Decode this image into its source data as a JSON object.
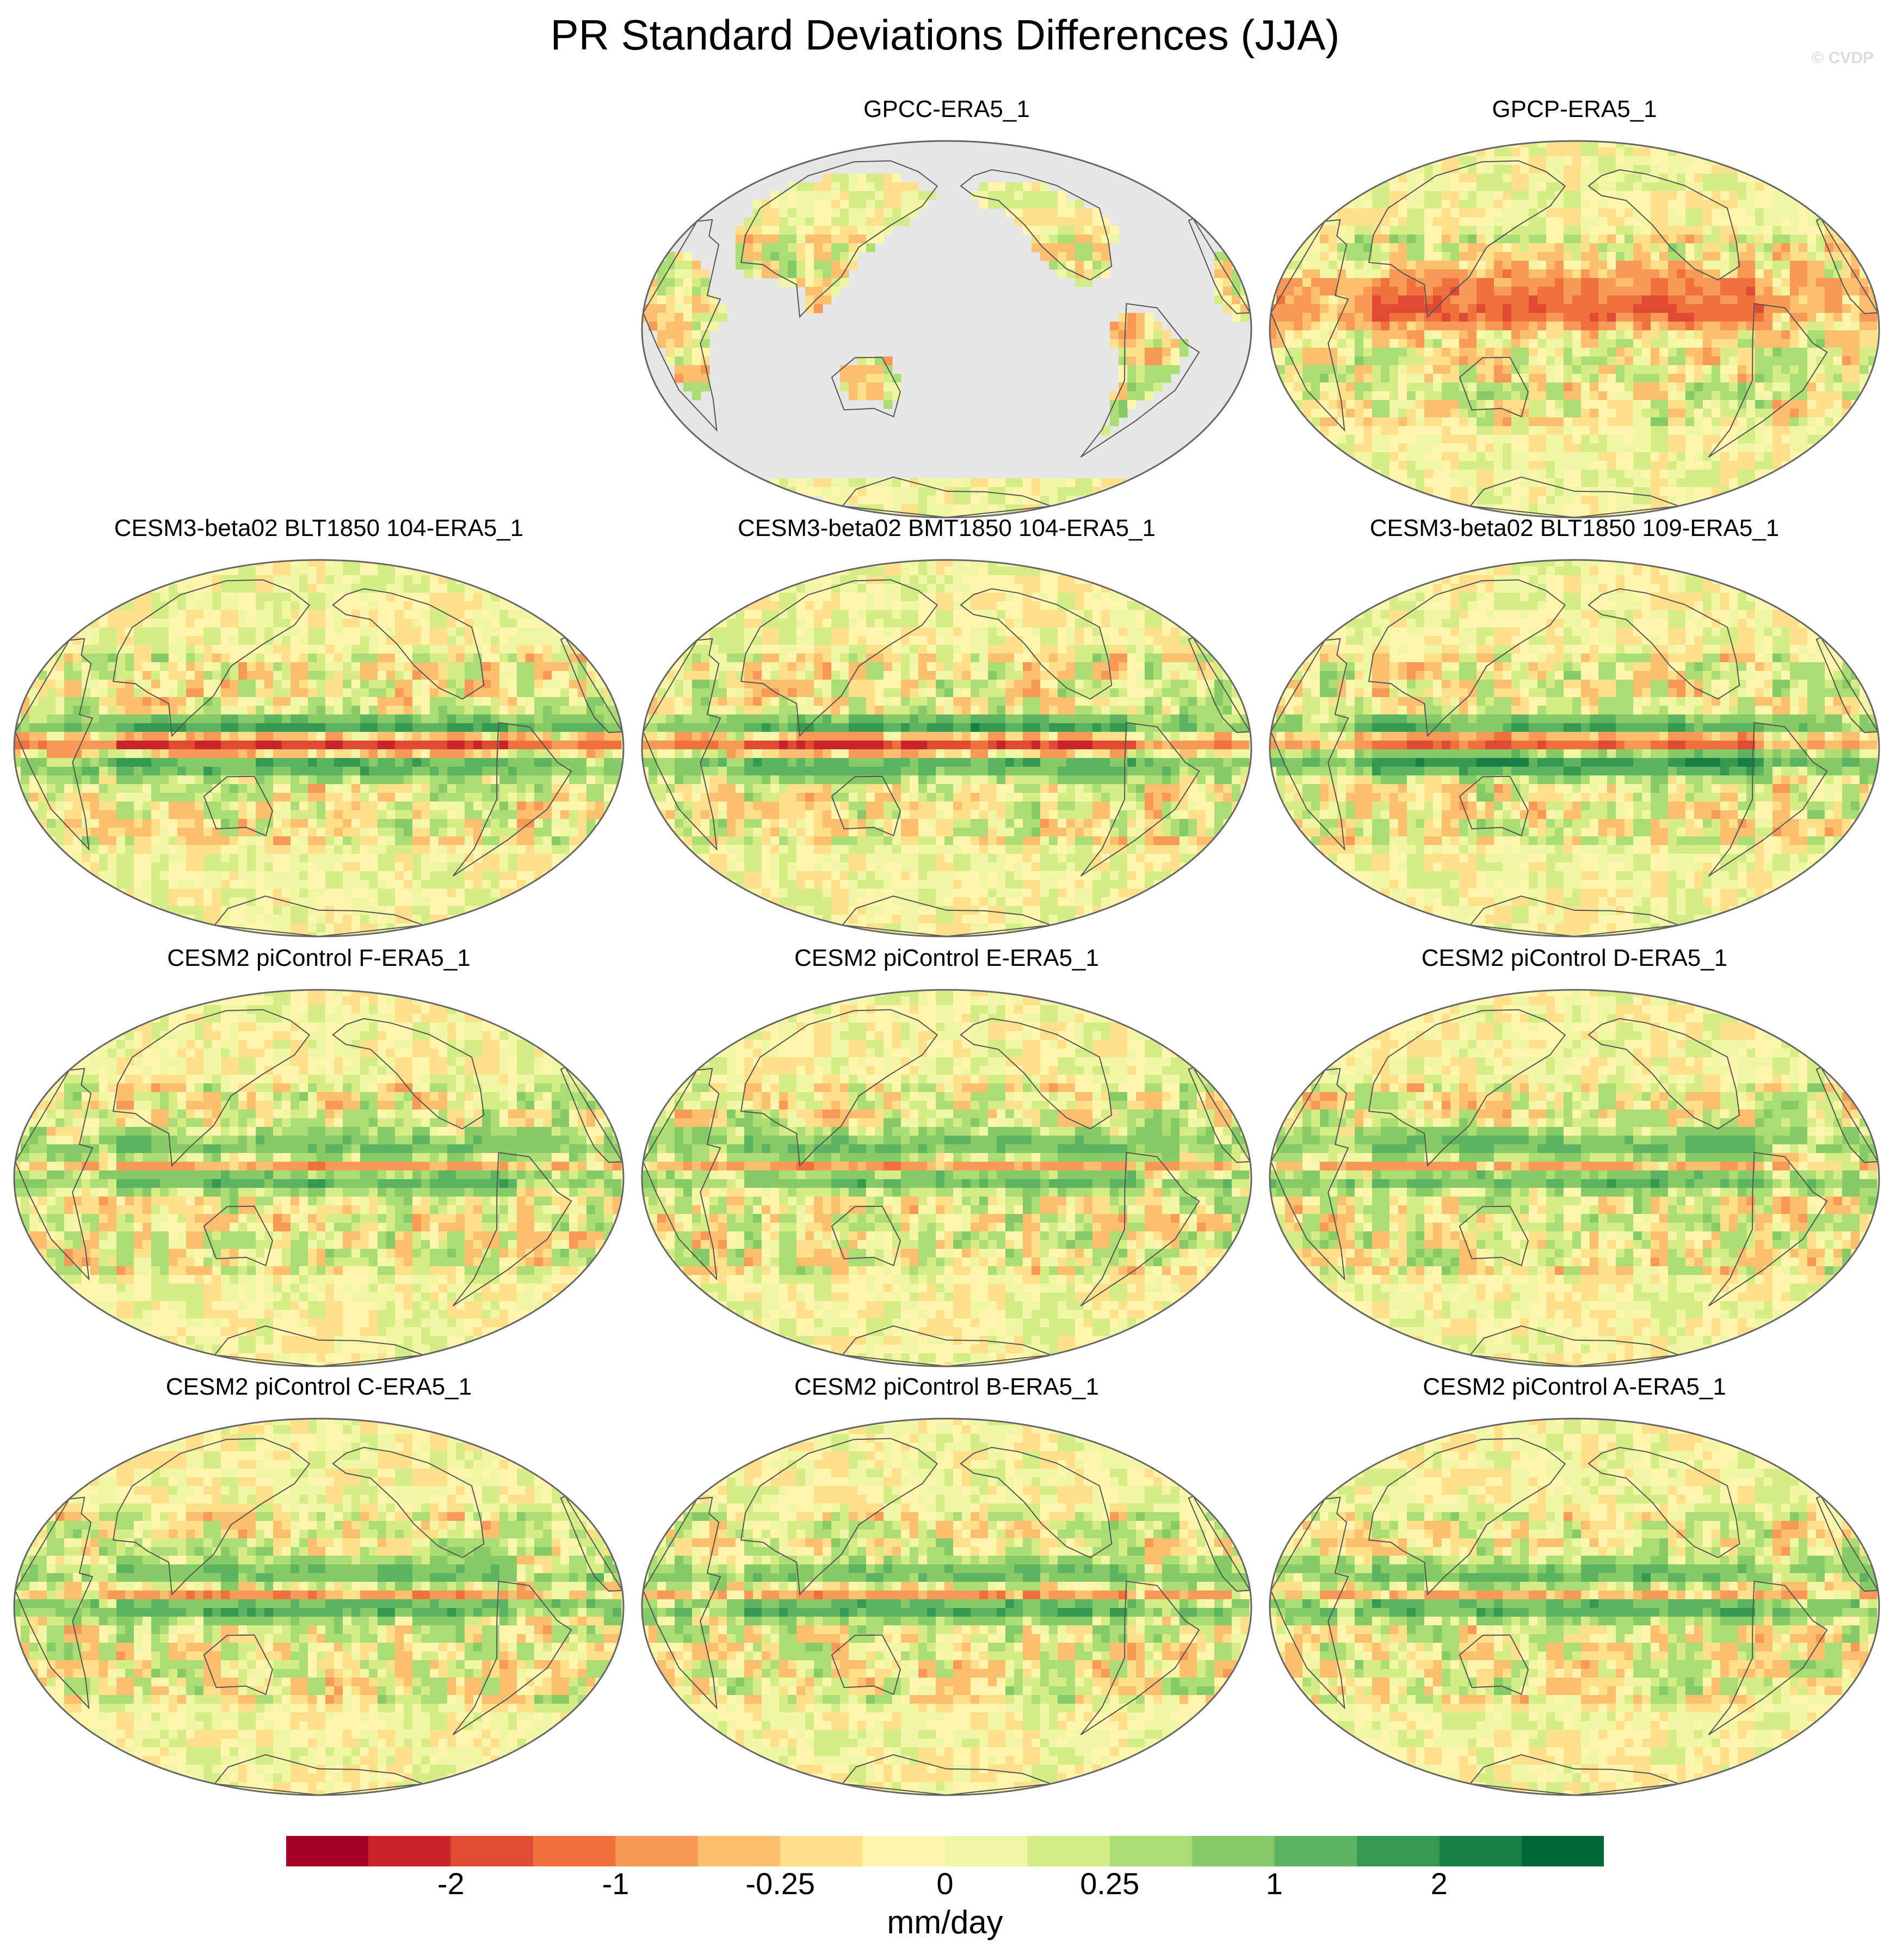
{
  "title": "PR Standard Deviations Differences (JJA)",
  "watermark": "© CVDP",
  "panels": [
    {
      "id": "gpcc",
      "label": "GPCC-ERA5_1",
      "land_only": true,
      "bands": [
        {
          "lat": 0,
          "amp": -0.6,
          "w": 10
        }
      ]
    },
    {
      "id": "gpcp",
      "label": "GPCP-ERA5_1",
      "land_only": false,
      "bands": [
        {
          "lat": 8,
          "amp": -1.2,
          "w": 8
        },
        {
          "lat": 20,
          "amp": -0.8,
          "w": 10
        }
      ]
    },
    {
      "id": "blt104",
      "label": "CESM3-beta02 BLT1850 104-ERA5_1",
      "land_only": false,
      "bands": [
        {
          "lat": 2,
          "amp": -2.2,
          "w": 5
        },
        {
          "lat": 10,
          "amp": 1.8,
          "w": 5
        },
        {
          "lat": -8,
          "amp": 1.4,
          "w": 6
        }
      ]
    },
    {
      "id": "bmt104",
      "label": "CESM3-beta02 BMT1850 104-ERA5_1",
      "land_only": false,
      "bands": [
        {
          "lat": 2,
          "amp": -2.1,
          "w": 5
        },
        {
          "lat": 10,
          "amp": 1.7,
          "w": 5
        },
        {
          "lat": -8,
          "amp": 1.3,
          "w": 6
        }
      ]
    },
    {
      "id": "blt109",
      "label": "CESM3-beta02 BLT1850 109-ERA5_1",
      "land_only": false,
      "bands": [
        {
          "lat": 3,
          "amp": -1.8,
          "w": 5
        },
        {
          "lat": 10,
          "amp": 1.6,
          "w": 5
        },
        {
          "lat": -7,
          "amp": 1.8,
          "w": 6
        }
      ]
    },
    {
      "id": "picf",
      "label": "CESM2 piControl F-ERA5_1",
      "land_only": false,
      "bands": [
        {
          "lat": 5,
          "amp": -1.6,
          "w": 4
        },
        {
          "lat": 0,
          "amp": 1.4,
          "w": 6
        },
        {
          "lat": 15,
          "amp": 0.9,
          "w": 8
        }
      ]
    },
    {
      "id": "pice",
      "label": "CESM2 piControl E-ERA5_1",
      "land_only": false,
      "bands": [
        {
          "lat": 5,
          "amp": -1.5,
          "w": 4
        },
        {
          "lat": 0,
          "amp": 1.3,
          "w": 6
        },
        {
          "lat": 15,
          "amp": 0.9,
          "w": 8
        }
      ]
    },
    {
      "id": "picd",
      "label": "CESM2 piControl D-ERA5_1",
      "land_only": false,
      "bands": [
        {
          "lat": 5,
          "amp": -1.4,
          "w": 4
        },
        {
          "lat": 0,
          "amp": 1.4,
          "w": 6
        },
        {
          "lat": 15,
          "amp": 1.0,
          "w": 8
        }
      ]
    },
    {
      "id": "picc",
      "label": "CESM2 piControl C-ERA5_1",
      "land_only": false,
      "bands": [
        {
          "lat": 6,
          "amp": -1.5,
          "w": 4
        },
        {
          "lat": 0,
          "amp": 1.5,
          "w": 6
        },
        {
          "lat": 15,
          "amp": 1.0,
          "w": 8
        }
      ]
    },
    {
      "id": "picb",
      "label": "CESM2 piControl B-ERA5_1",
      "land_only": false,
      "bands": [
        {
          "lat": 6,
          "amp": -1.6,
          "w": 4
        },
        {
          "lat": 0,
          "amp": 1.5,
          "w": 6
        },
        {
          "lat": 15,
          "amp": 1.0,
          "w": 8
        }
      ]
    },
    {
      "id": "pica",
      "label": "CESM2 piControl A-ERA5_1",
      "land_only": false,
      "bands": [
        {
          "lat": 6,
          "amp": -1.4,
          "w": 4
        },
        {
          "lat": 0,
          "amp": 1.4,
          "w": 6
        },
        {
          "lat": 15,
          "amp": 1.0,
          "w": 8
        }
      ]
    }
  ],
  "colorbar": {
    "colors": [
      "#a50026",
      "#c9242a",
      "#e04a32",
      "#f0703e",
      "#f89a57",
      "#fcbf6f",
      "#fee08b",
      "#fff5ac",
      "#f0f7a4",
      "#d4ed86",
      "#acdd74",
      "#86cb66",
      "#5db35f",
      "#35994f",
      "#168044",
      "#006837"
    ],
    "tick_labels": [
      "-2",
      "-1",
      "-0.25",
      "0",
      "0.25",
      "1",
      "2"
    ],
    "tick_boundaries": [
      2,
      4,
      6,
      8,
      10,
      12,
      14
    ],
    "units": "mm/day"
  },
  "colors": {
    "land_mask": "#e6e6e6",
    "coast": "#555555",
    "border": "#666666"
  }
}
